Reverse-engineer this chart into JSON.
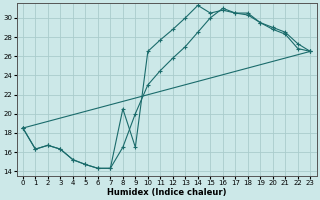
{
  "xlabel": "Humidex (Indice chaleur)",
  "ylabel": "",
  "xlim": [
    -0.5,
    23.5
  ],
  "ylim": [
    13.5,
    31.5
  ],
  "xticks": [
    0,
    1,
    2,
    3,
    4,
    5,
    6,
    7,
    8,
    9,
    10,
    11,
    12,
    13,
    14,
    15,
    16,
    17,
    18,
    19,
    20,
    21,
    22,
    23
  ],
  "yticks": [
    14,
    16,
    18,
    20,
    22,
    24,
    26,
    28,
    30
  ],
  "bg_color": "#cce8e8",
  "grid_color": "#aacccc",
  "line_color": "#1a6b6b",
  "line1_x": [
    0,
    1,
    2,
    3,
    4,
    5,
    6,
    7,
    8,
    9,
    10,
    11,
    12,
    13,
    14,
    15,
    16,
    17,
    18,
    19,
    20,
    21,
    22,
    23
  ],
  "line1_y": [
    18.5,
    16.3,
    16.7,
    16.3,
    15.2,
    14.7,
    14.3,
    14.3,
    16.5,
    20.0,
    23.0,
    24.5,
    25.8,
    27.0,
    28.5,
    30.0,
    31.0,
    30.5,
    30.3,
    29.5,
    29.0,
    28.5,
    27.3,
    26.5
  ],
  "line2_x": [
    0,
    1,
    2,
    3,
    4,
    5,
    6,
    7,
    8,
    9,
    10,
    11,
    12,
    13,
    14,
    15,
    16,
    17,
    18,
    19,
    20,
    21,
    22,
    23
  ],
  "line2_y": [
    18.5,
    16.3,
    16.7,
    16.3,
    15.2,
    14.7,
    14.3,
    14.3,
    20.5,
    16.5,
    26.5,
    27.7,
    28.8,
    30.0,
    31.3,
    30.5,
    30.8,
    30.5,
    30.5,
    29.5,
    28.8,
    28.3,
    26.8,
    26.5
  ],
  "line3_x": [
    0,
    23
  ],
  "line3_y": [
    18.5,
    26.5
  ]
}
